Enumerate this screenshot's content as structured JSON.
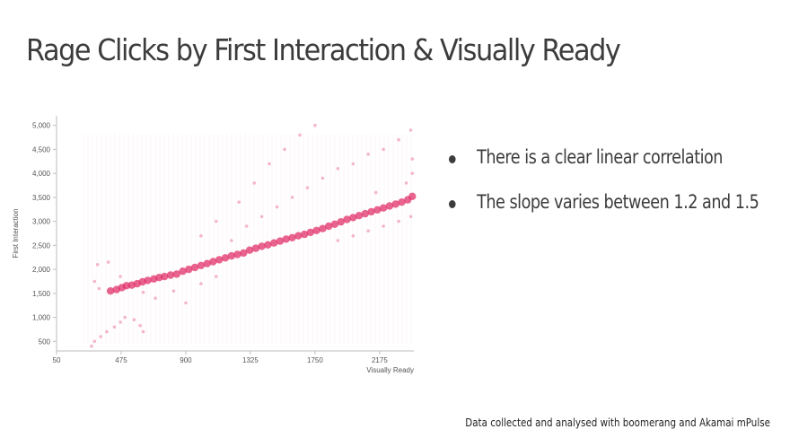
{
  "slide": {
    "title": "Rage Clicks by First Interaction & Visually Ready",
    "bullets": [
      "There is a clear linear correlation",
      "The slope varies between 1.2 and 1.5"
    ],
    "footer": "Data collected and analysed with boomerang and Akamai mPulse"
  },
  "chart_data": {
    "type": "scatter",
    "xlabel": "Visually Ready",
    "ylabel": "First Interaction",
    "xlim": [
      50,
      2400
    ],
    "ylim": [
      300,
      5200
    ],
    "x_ticks": [
      50,
      475,
      900,
      1325,
      1750,
      2175
    ],
    "x_tick_labels": [
      "50",
      "475",
      "900",
      "1325",
      "1750",
      "2175"
    ],
    "y_ticks": [
      500,
      1000,
      1500,
      2000,
      2500,
      3000,
      3500,
      4000,
      4500,
      5000
    ],
    "y_tick_labels": [
      "500",
      "1,000",
      "1,500",
      "2,000",
      "2,500",
      "3,000",
      "3,500",
      "4,000",
      "4,500",
      "5,000"
    ],
    "color": "#e0306a",
    "series": [
      {
        "values": [
          {
            "x": 405,
            "y": 1550
          },
          {
            "x": 445,
            "y": 1580
          },
          {
            "x": 480,
            "y": 1620
          },
          {
            "x": 510,
            "y": 1660
          },
          {
            "x": 545,
            "y": 1670
          },
          {
            "x": 580,
            "y": 1700
          },
          {
            "x": 615,
            "y": 1740
          },
          {
            "x": 650,
            "y": 1770
          },
          {
            "x": 690,
            "y": 1800
          },
          {
            "x": 725,
            "y": 1830
          },
          {
            "x": 760,
            "y": 1850
          },
          {
            "x": 800,
            "y": 1880
          },
          {
            "x": 840,
            "y": 1900
          },
          {
            "x": 880,
            "y": 1960
          },
          {
            "x": 920,
            "y": 2000
          },
          {
            "x": 960,
            "y": 2040
          },
          {
            "x": 1000,
            "y": 2080
          },
          {
            "x": 1040,
            "y": 2120
          },
          {
            "x": 1080,
            "y": 2160
          },
          {
            "x": 1120,
            "y": 2200
          },
          {
            "x": 1160,
            "y": 2240
          },
          {
            "x": 1200,
            "y": 2280
          },
          {
            "x": 1240,
            "y": 2310
          },
          {
            "x": 1280,
            "y": 2340
          },
          {
            "x": 1320,
            "y": 2400
          },
          {
            "x": 1360,
            "y": 2440
          },
          {
            "x": 1400,
            "y": 2480
          },
          {
            "x": 1440,
            "y": 2510
          },
          {
            "x": 1480,
            "y": 2550
          },
          {
            "x": 1520,
            "y": 2590
          },
          {
            "x": 1560,
            "y": 2630
          },
          {
            "x": 1600,
            "y": 2660
          },
          {
            "x": 1640,
            "y": 2700
          },
          {
            "x": 1680,
            "y": 2730
          },
          {
            "x": 1720,
            "y": 2770
          },
          {
            "x": 1760,
            "y": 2810
          },
          {
            "x": 1800,
            "y": 2850
          },
          {
            "x": 1840,
            "y": 2900
          },
          {
            "x": 1880,
            "y": 2940
          },
          {
            "x": 1920,
            "y": 2990
          },
          {
            "x": 1960,
            "y": 3040
          },
          {
            "x": 2000,
            "y": 3080
          },
          {
            "x": 2040,
            "y": 3120
          },
          {
            "x": 2080,
            "y": 3160
          },
          {
            "x": 2120,
            "y": 3200
          },
          {
            "x": 2160,
            "y": 3240
          },
          {
            "x": 2200,
            "y": 3280
          },
          {
            "x": 2240,
            "y": 3320
          },
          {
            "x": 2280,
            "y": 3360
          },
          {
            "x": 2320,
            "y": 3400
          },
          {
            "x": 2360,
            "y": 3450
          },
          {
            "x": 2390,
            "y": 3520
          },
          {
            "x": 300,
            "y": 1750
          },
          {
            "x": 320,
            "y": 2100
          },
          {
            "x": 330,
            "y": 1600
          },
          {
            "x": 390,
            "y": 2150
          },
          {
            "x": 470,
            "y": 1850
          },
          {
            "x": 620,
            "y": 1520
          },
          {
            "x": 560,
            "y": 950
          },
          {
            "x": 600,
            "y": 830
          },
          {
            "x": 620,
            "y": 700
          },
          {
            "x": 500,
            "y": 1000
          },
          {
            "x": 470,
            "y": 900
          },
          {
            "x": 430,
            "y": 800
          },
          {
            "x": 380,
            "y": 700
          },
          {
            "x": 340,
            "y": 600
          },
          {
            "x": 300,
            "y": 500
          },
          {
            "x": 280,
            "y": 400
          },
          {
            "x": 700,
            "y": 1400
          },
          {
            "x": 820,
            "y": 1550
          },
          {
            "x": 900,
            "y": 1300
          },
          {
            "x": 1000,
            "y": 1700
          },
          {
            "x": 1100,
            "y": 1850
          },
          {
            "x": 1200,
            "y": 2600
          },
          {
            "x": 1300,
            "y": 2900
          },
          {
            "x": 1400,
            "y": 3100
          },
          {
            "x": 1500,
            "y": 3300
          },
          {
            "x": 1600,
            "y": 3500
          },
          {
            "x": 1700,
            "y": 3700
          },
          {
            "x": 1800,
            "y": 3900
          },
          {
            "x": 1900,
            "y": 4100
          },
          {
            "x": 2000,
            "y": 4200
          },
          {
            "x": 2100,
            "y": 4400
          },
          {
            "x": 2200,
            "y": 4500
          },
          {
            "x": 2300,
            "y": 4700
          },
          {
            "x": 2380,
            "y": 4900
          },
          {
            "x": 1000,
            "y": 2700
          },
          {
            "x": 1100,
            "y": 3000
          },
          {
            "x": 1250,
            "y": 3400
          },
          {
            "x": 1350,
            "y": 3800
          },
          {
            "x": 1450,
            "y": 4200
          },
          {
            "x": 1550,
            "y": 4500
          },
          {
            "x": 1650,
            "y": 4800
          },
          {
            "x": 1750,
            "y": 5000
          },
          {
            "x": 1900,
            "y": 2600
          },
          {
            "x": 2000,
            "y": 2700
          },
          {
            "x": 2100,
            "y": 2800
          },
          {
            "x": 2200,
            "y": 2900
          },
          {
            "x": 2300,
            "y": 3000
          },
          {
            "x": 2380,
            "y": 3100
          },
          {
            "x": 2390,
            "y": 4000
          },
          {
            "x": 2390,
            "y": 4300
          },
          {
            "x": 2350,
            "y": 3800
          },
          {
            "x": 2150,
            "y": 3600
          }
        ]
      }
    ]
  }
}
